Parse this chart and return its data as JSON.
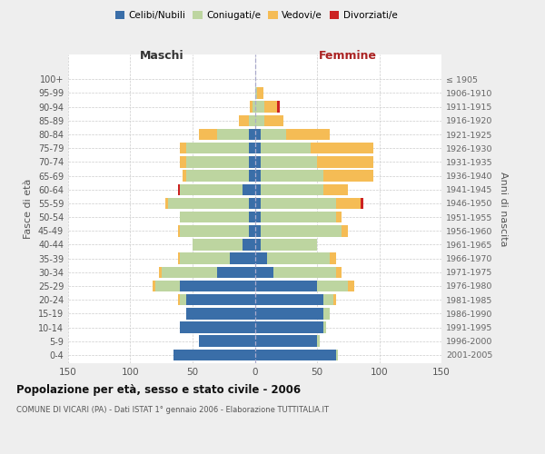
{
  "age_groups": [
    "0-4",
    "5-9",
    "10-14",
    "15-19",
    "20-24",
    "25-29",
    "30-34",
    "35-39",
    "40-44",
    "45-49",
    "50-54",
    "55-59",
    "60-64",
    "65-69",
    "70-74",
    "75-79",
    "80-84",
    "85-89",
    "90-94",
    "95-99",
    "100+"
  ],
  "birth_years": [
    "2001-2005",
    "1996-2000",
    "1991-1995",
    "1986-1990",
    "1981-1985",
    "1976-1980",
    "1971-1975",
    "1966-1970",
    "1961-1965",
    "1956-1960",
    "1951-1955",
    "1946-1950",
    "1941-1945",
    "1936-1940",
    "1931-1935",
    "1926-1930",
    "1921-1925",
    "1916-1920",
    "1911-1915",
    "1906-1910",
    "≤ 1905"
  ],
  "colors": {
    "celibi": "#3a6ea8",
    "coniugati": "#bdd5a0",
    "vedovi": "#f5bc55",
    "divorziati": "#cc2222"
  },
  "males_celibi": [
    65,
    45,
    60,
    55,
    55,
    60,
    30,
    20,
    10,
    5,
    5,
    5,
    10,
    5,
    5,
    5,
    5,
    0,
    0,
    0,
    0
  ],
  "males_coniugati": [
    0,
    0,
    0,
    0,
    5,
    20,
    45,
    40,
    40,
    55,
    55,
    65,
    50,
    50,
    50,
    50,
    25,
    5,
    2,
    0,
    0
  ],
  "males_vedovi": [
    0,
    0,
    0,
    0,
    2,
    2,
    2,
    2,
    0,
    2,
    0,
    2,
    0,
    3,
    5,
    5,
    15,
    8,
    2,
    0,
    0
  ],
  "males_divorziati": [
    0,
    0,
    0,
    0,
    0,
    0,
    0,
    0,
    0,
    0,
    0,
    0,
    2,
    0,
    0,
    0,
    0,
    0,
    0,
    0,
    0
  ],
  "fem_nubili": [
    65,
    50,
    55,
    55,
    55,
    50,
    15,
    10,
    5,
    5,
    5,
    5,
    5,
    5,
    5,
    5,
    5,
    0,
    0,
    0,
    0
  ],
  "fem_coniugate": [
    2,
    2,
    2,
    5,
    8,
    25,
    50,
    50,
    45,
    65,
    60,
    60,
    50,
    50,
    45,
    40,
    20,
    8,
    8,
    2,
    0
  ],
  "fem_vedove": [
    0,
    0,
    0,
    0,
    2,
    5,
    5,
    5,
    0,
    5,
    5,
    20,
    20,
    40,
    45,
    50,
    35,
    15,
    10,
    5,
    0
  ],
  "fem_divorziate": [
    0,
    0,
    0,
    0,
    0,
    0,
    0,
    0,
    0,
    0,
    0,
    2,
    0,
    0,
    0,
    0,
    0,
    0,
    2,
    0,
    0
  ],
  "title": "Popolazione per età, sesso e stato civile - 2006",
  "subtitle": "COMUNE DI VICARI (PA) - Dati ISTAT 1° gennaio 2006 - Elaborazione TUTTITALIA.IT",
  "label_maschi": "Maschi",
  "label_femmine": "Femmine",
  "ylabel_left": "Fasce di età",
  "ylabel_right": "Anni di nascita",
  "xlim": 150,
  "bg_color": "#eeeeee",
  "plot_bg": "#ffffff",
  "grid_color": "#cccccc"
}
